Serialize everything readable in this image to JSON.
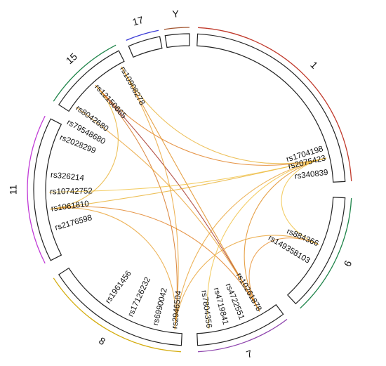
{
  "diagram": {
    "type": "chord",
    "chromosomes": [
      {
        "name": "1",
        "color": "#c0392b"
      },
      {
        "name": "6",
        "color": "#1e8449"
      },
      {
        "name": "7",
        "color": "#8e44ad"
      },
      {
        "name": "8",
        "color": "#d4ac0d"
      },
      {
        "name": "11",
        "color": "#c039d6"
      },
      {
        "name": "15",
        "color": "#1e8449"
      },
      {
        "name": "17",
        "color": "#3b3bd6"
      },
      {
        "name": "Y",
        "color": "#a0522d"
      }
    ],
    "snps": [
      {
        "id": "rs1704198",
        "chromosome": "1"
      },
      {
        "id": "rs2075423",
        "chromosome": "1"
      },
      {
        "id": "rs340839",
        "chromosome": "1"
      },
      {
        "id": "rs884366",
        "chromosome": "6"
      },
      {
        "id": "rs149358103",
        "chromosome": "6"
      },
      {
        "id": "rs10261878",
        "chromosome": "7"
      },
      {
        "id": "rs4722551",
        "chromosome": "7"
      },
      {
        "id": "rs4719841",
        "chromosome": "7"
      },
      {
        "id": "rs7804356",
        "chromosome": "7"
      },
      {
        "id": "rs2946504",
        "chromosome": "8"
      },
      {
        "id": "rs6990042",
        "chromosome": "8"
      },
      {
        "id": "rs17126232",
        "chromosome": "8"
      },
      {
        "id": "rs1961456",
        "chromosome": "8"
      },
      {
        "id": "rs2176598",
        "chromosome": "11"
      },
      {
        "id": "rs1061810",
        "chromosome": "11"
      },
      {
        "id": "rs10742752",
        "chromosome": "11"
      },
      {
        "id": "rs326214",
        "chromosome": "11"
      },
      {
        "id": "rs2028299",
        "chromosome": "15"
      },
      {
        "id": "rs79548680",
        "chromosome": "15"
      },
      {
        "id": "rs8042680",
        "chromosome": "15"
      },
      {
        "id": "rs12150665",
        "chromosome": "17"
      },
      {
        "id": "rs10908278",
        "chromosome": "17"
      }
    ],
    "links": [
      {
        "from": "rs12150665",
        "to": "rs10261878",
        "color": "#a0281a"
      },
      {
        "from": "rs12150665",
        "to": "rs2075423",
        "color": "#e07a1a"
      },
      {
        "from": "rs12150665",
        "to": "rs2946504",
        "color": "#d4701a"
      },
      {
        "from": "rs10908278",
        "to": "rs10261878",
        "color": "#e08a1a"
      },
      {
        "from": "rs10908278",
        "to": "rs2075423",
        "color": "#e8b030"
      },
      {
        "from": "rs10908278",
        "to": "rs2946504",
        "color": "#e8a030"
      },
      {
        "from": "rs1061810",
        "to": "rs2075423",
        "color": "#e8b030"
      },
      {
        "from": "rs1061810",
        "to": "rs10261878",
        "color": "#e07a1a"
      },
      {
        "from": "rs1061810",
        "to": "rs2946504",
        "color": "#e8a030"
      },
      {
        "from": "rs10742752",
        "to": "rs2075423",
        "color": "#f0c040"
      },
      {
        "from": "rs2946504",
        "to": "rs2075423",
        "color": "#e8a030"
      },
      {
        "from": "rs2946504",
        "to": "rs884366",
        "color": "#e8a030"
      },
      {
        "from": "rs10261878",
        "to": "rs2075423",
        "color": "#e08a1a"
      },
      {
        "from": "rs10261878",
        "to": "rs884366",
        "color": "#e89030"
      },
      {
        "from": "rs884366",
        "to": "rs2075423",
        "color": "#f0c040"
      },
      {
        "from": "rs8042680",
        "to": "rs10261878",
        "color": "#e8a030"
      },
      {
        "from": "rs7804356",
        "to": "rs2075423",
        "color": "#f0c040"
      },
      {
        "from": "rs12150665",
        "to": "rs1061810",
        "color": "#e8b030"
      }
    ]
  }
}
